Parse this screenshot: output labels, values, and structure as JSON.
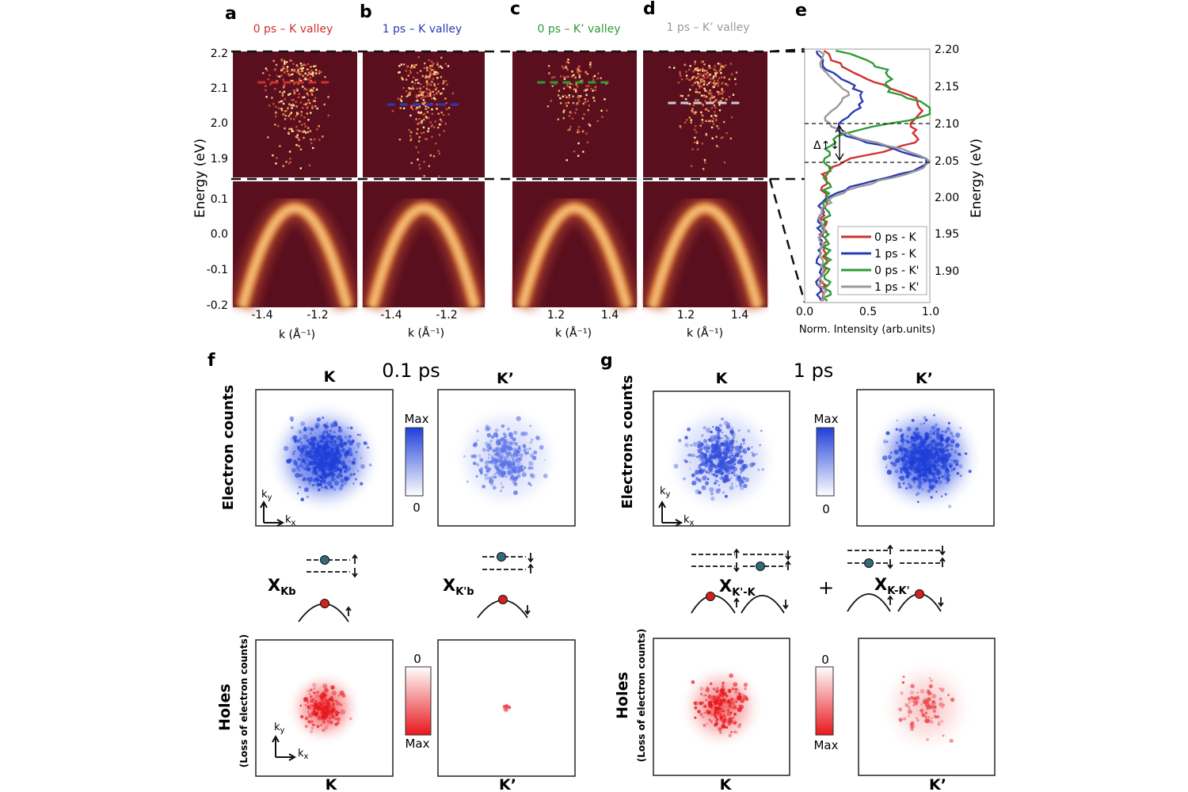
{
  "panel_letters": [
    "a",
    "b",
    "c",
    "d",
    "e",
    "f",
    "g"
  ],
  "top_titles": [
    {
      "text": "0 ps – K valley",
      "color": "#d32f2f"
    },
    {
      "text": "1 ps – K valley",
      "color": "#2b3bb5"
    },
    {
      "text": "0 ps – K’ valley",
      "color": "#2e9b35"
    },
    {
      "text": "1 ps – K’ valley",
      "color": "#9a9a9a"
    }
  ],
  "energy_axis": {
    "label": "Energy (eV)",
    "upper_ticks": [
      "2.2",
      "2.1",
      "2.0",
      "1.9"
    ],
    "lower_ticks": [
      "0.1",
      "0.0",
      "-0.1",
      "-0.2"
    ]
  },
  "k_axes": [
    {
      "ticks": [
        "-1.4",
        "-1.2"
      ],
      "label": "k (Å⁻¹)"
    },
    {
      "ticks": [
        "-1.4",
        "-1.2"
      ],
      "label": "k (Å⁻¹)"
    },
    {
      "ticks": [
        "1.2",
        "1.4"
      ],
      "label": "k (Å⁻¹)"
    },
    {
      "ticks": [
        "1.2",
        "1.4"
      ],
      "label": "k (Å⁻¹)"
    }
  ],
  "panel_e": {
    "right_ticks": [
      "2.20",
      "2.15",
      "2.10",
      "2.05",
      "2.00",
      "1.95",
      "1.90"
    ],
    "right_label": "Energy (eV)",
    "x_ticks": [
      "0.0",
      "0.5",
      "1.0"
    ],
    "x_label": "Norm. Intensity (arb.units)",
    "delta_label": "Δ↑↓",
    "legend": [
      {
        "name": "0 ps - K",
        "color": "#d32f2f"
      },
      {
        "name": "1 ps - K",
        "color": "#2b3bb5"
      },
      {
        "name": "0 ps - K'",
        "color": "#2e9b35"
      },
      {
        "name": "1 ps - K'",
        "color": "#9a9a9a"
      }
    ]
  },
  "panel_f": {
    "time": "0.1 ps",
    "electron_ylabel": "Electron counts",
    "map_titles": [
      "K",
      "K’"
    ],
    "cbar_max": "Max",
    "cbar_zero": "0",
    "exciton_labels": [
      "X",
      "Kb",
      "X",
      "K'b"
    ],
    "holes_label": "Holes",
    "holes_sublabel": "(Loss of electron counts)",
    "hole_cbar_zero": "0",
    "hole_cbar_max": "Max",
    "bottom_labels": [
      "K",
      "K’"
    ],
    "kx": "k",
    "kx_sub": "x",
    "ky": "k",
    "ky_sub": "y"
  },
  "panel_g": {
    "time": "1 ps",
    "electron_ylabel": "Electrons counts",
    "map_titles": [
      "K",
      "K’"
    ],
    "cbar_max": "Max",
    "cbar_zero": "0",
    "exciton_labels": [
      "X",
      "K'-K",
      "X",
      "K-K'"
    ],
    "plus": "+",
    "holes_label": "Holes",
    "holes_sublabel": "(Loss of electron counts)",
    "hole_cbar_zero": "0",
    "hole_cbar_max": "Max",
    "bottom_labels": [
      "K",
      "K’"
    ],
    "kx": "k",
    "kx_sub": "x",
    "ky": "k",
    "ky_sub": "y"
  },
  "colors": {
    "arpes_bg": "#5a0f1e",
    "electron_blue": "#1f3fd9",
    "hole_red": "#e8161b",
    "spin_dot": "#2f6b78",
    "hole_dot": "#d62020"
  }
}
